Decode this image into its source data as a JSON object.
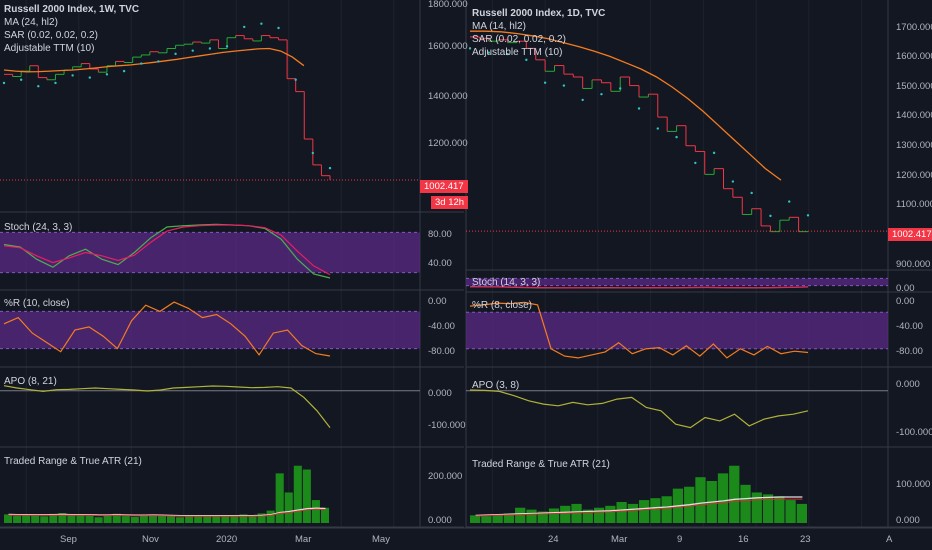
{
  "colors": {
    "bg": "#131722",
    "grid": "#1e222d",
    "divider": "#363a45",
    "up": "#22ab32",
    "down": "#f23645",
    "ma": "#f57c1f",
    "sar": "#2ec4c4",
    "stoch_k": "#4caf50",
    "stoch_d": "#e91e63",
    "band": "#5b2a86",
    "apo": "#b0b238",
    "hist": "#1b8a1b",
    "atr": "#e0e0e0",
    "atr2": "#d32f2f",
    "last": "#f23645"
  },
  "left": {
    "legend": [
      "Russell 2000 Index, 1W, TVC",
      "MA (24, hl2)",
      "SAR (0.02, 0.02, 0.2)",
      "Adjustable TTM (10)"
    ],
    "price_ticks": [
      "1800.000",
      "1600.000",
      "1400.000",
      "1200.000"
    ],
    "last_price": "1002.417",
    "countdown": "3d 12h",
    "stoch_label": "Stoch (24, 3, 3)",
    "stoch_ticks": [
      "80.00",
      "40.00"
    ],
    "wr_label": "%R (10, close)",
    "wr_ticks": [
      "0.00",
      "-40.00",
      "-80.00"
    ],
    "apo_label": "APO (8, 21)",
    "apo_ticks": [
      "0.000",
      "-100.000"
    ],
    "atr_label": "Traded Range & True ATR (21)",
    "atr_ticks": [
      "200.000",
      "0.000"
    ],
    "x_ticks": [
      "Sep",
      "Nov",
      "2020",
      "Mar",
      "May"
    ],
    "chart_data": {
      "type": "line",
      "title": "Russell 2000 Index, 1W, TVC",
      "price_ylim": [
        900,
        1800
      ],
      "close": [
        1520,
        1510,
        1535,
        1560,
        1505,
        1495,
        1520,
        1540,
        1555,
        1570,
        1545,
        1530,
        1560,
        1580,
        1575,
        1600,
        1610,
        1625,
        1620,
        1640,
        1655,
        1660,
        1670,
        1665,
        1680,
        1640,
        1690,
        1700,
        1685,
        1675,
        1700,
        1690,
        1680,
        1500,
        1440,
        1220,
        1100,
        1050,
        1030
      ],
      "ma": [
        1540,
        1535,
        1532,
        1533,
        1535,
        1538,
        1540,
        1545,
        1550,
        1556,
        1560,
        1564,
        1570,
        1576,
        1583,
        1590,
        1598,
        1606,
        1614,
        1622,
        1628,
        1633,
        1638,
        1640,
        1628,
        1600,
        1560
      ],
      "stoch_k": [
        62,
        58,
        40,
        28,
        45,
        55,
        40,
        32,
        50,
        72,
        88,
        90,
        91,
        92,
        91,
        90,
        86,
        70,
        40,
        18,
        12
      ],
      "stoch_d": [
        60,
        57,
        45,
        35,
        42,
        50,
        45,
        38,
        46,
        65,
        82,
        88,
        90,
        91,
        91,
        90,
        87,
        76,
        52,
        30,
        17
      ],
      "wr": [
        -40,
        -30,
        -55,
        -70,
        -85,
        -50,
        -45,
        -60,
        -80,
        -35,
        -10,
        -20,
        -5,
        -15,
        -30,
        -25,
        -40,
        -60,
        -90,
        -55,
        -50,
        -75,
        -88,
        -92
      ],
      "apo": [
        15,
        8,
        3,
        -2,
        3,
        4,
        6,
        8,
        6,
        4,
        2,
        -1,
        2,
        8,
        10,
        12,
        14,
        13,
        11,
        9,
        10,
        12,
        8,
        -20,
        -60,
        -110
      ],
      "atr_values": [
        45,
        38,
        40,
        42,
        35,
        48,
        52,
        40,
        45,
        38,
        30,
        42,
        48,
        36,
        32,
        40,
        45,
        38,
        35,
        30,
        42,
        38,
        40,
        34,
        36,
        40,
        45,
        42,
        50,
        65,
        260,
        160,
        300,
        280,
        120,
        80
      ],
      "true_atr": [
        45,
        44,
        44,
        43,
        43,
        44,
        45,
        44,
        44,
        43,
        42,
        42,
        43,
        42,
        41,
        41,
        42,
        41,
        40,
        39,
        39,
        39,
        39,
        38,
        38,
        38,
        39,
        39,
        40,
        44,
        55,
        60,
        68,
        75,
        78,
        76
      ]
    }
  },
  "right": {
    "legend": [
      "Russell 2000 Index, 1D, TVC",
      "MA (14, hl2)",
      "SAR (0.02, 0.02, 0.2)",
      "Adjustable TTM (10)"
    ],
    "price_ticks": [
      "1700.000",
      "1600.000",
      "1500.000",
      "1400.000",
      "1300.000",
      "1200.000",
      "1100.000",
      "900.000"
    ],
    "last_price": "1002.417",
    "stoch_label": "Stoch (14, 3, 3)",
    "stoch_ticks": [
      "0.00"
    ],
    "wr_label": "%R (8, close)",
    "wr_ticks": [
      "0.00",
      "-40.00",
      "-80.00"
    ],
    "apo_label": "APO (3, 8)",
    "apo_ticks": [
      "0.000",
      "-100.000"
    ],
    "atr_label": "Traded Range & True ATR (21)",
    "atr_ticks": [
      "100.000",
      "0.000"
    ],
    "x_ticks": [
      "24",
      "Mar",
      "9",
      "16",
      "23",
      "A"
    ],
    "chart_data": {
      "type": "line",
      "title": "Russell 2000 Index, 1D, TVC",
      "price_ylim": [
        880,
        1760
      ],
      "close": [
        1680,
        1675,
        1665,
        1670,
        1660,
        1665,
        1640,
        1600,
        1560,
        1580,
        1550,
        1540,
        1500,
        1530,
        1520,
        1490,
        1540,
        1510,
        1470,
        1480,
        1400,
        1350,
        1370,
        1300,
        1280,
        1200,
        1220,
        1150,
        1120,
        1060,
        1080,
        1020,
        1000,
        1040,
        1050,
        1000,
        1002
      ],
      "ma": [
        1700,
        1700,
        1698,
        1692,
        1684,
        1674,
        1660,
        1646,
        1630,
        1612,
        1590,
        1568,
        1540,
        1505,
        1465,
        1420,
        1370,
        1320,
        1270,
        1220,
        1180
      ],
      "stoch_k": [
        12,
        10,
        8,
        4,
        2,
        1,
        1,
        2,
        3,
        2,
        2,
        3,
        2,
        4,
        5,
        3,
        2,
        2,
        4,
        6,
        10
      ],
      "stoch_d": [
        10,
        11,
        9,
        6,
        3,
        2,
        1,
        2,
        2,
        2,
        2,
        3,
        2,
        3,
        4,
        3,
        3,
        2,
        3,
        5,
        8
      ],
      "wr": [
        -10,
        -8,
        -5,
        -6,
        -4,
        -8,
        -80,
        -92,
        -95,
        -90,
        -85,
        -70,
        -88,
        -80,
        -78,
        -90,
        -75,
        -92,
        -72,
        -95,
        -80,
        -90,
        -76,
        -88,
        -84,
        -86
      ],
      "apo": [
        2,
        1,
        -2,
        -15,
        -30,
        -40,
        -45,
        -35,
        -42,
        -38,
        -25,
        -20,
        -50,
        -60,
        -100,
        -110,
        -80,
        -90,
        -70,
        -105,
        -85,
        -75,
        -70,
        -60
      ],
      "atr_values": [
        20,
        18,
        22,
        25,
        40,
        35,
        30,
        38,
        45,
        50,
        35,
        40,
        45,
        55,
        50,
        60,
        65,
        70,
        90,
        95,
        120,
        110,
        130,
        150,
        100,
        80,
        75,
        70,
        60,
        50
      ],
      "true_atr": [
        20,
        21,
        22,
        23,
        24,
        25,
        26,
        27,
        28,
        29,
        30,
        31,
        32,
        34,
        36,
        38,
        40,
        42,
        45,
        48,
        52,
        55,
        58,
        62,
        64,
        66,
        67,
        68,
        68,
        68
      ]
    }
  }
}
